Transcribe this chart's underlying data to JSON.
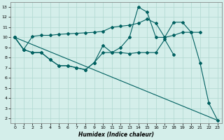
{
  "xlabel": "Humidex (Indice chaleur)",
  "bg_color": "#d4eeea",
  "grid_color": "#b0d8d0",
  "line_color": "#006060",
  "xlim": [
    -0.5,
    23.5
  ],
  "ylim": [
    1.5,
    13.5
  ],
  "xticks": [
    0,
    1,
    2,
    3,
    4,
    5,
    6,
    7,
    8,
    9,
    10,
    11,
    12,
    13,
    14,
    15,
    16,
    17,
    18,
    19,
    20,
    21,
    22,
    23
  ],
  "yticks": [
    2,
    3,
    4,
    5,
    6,
    7,
    8,
    9,
    10,
    11,
    12,
    13
  ],
  "line1_x": [
    0,
    1,
    2,
    3,
    4,
    5,
    6,
    7,
    8,
    9,
    10,
    11,
    12,
    13,
    14,
    15,
    16,
    17,
    18,
    19,
    20,
    21
  ],
  "line1_y": [
    10.0,
    8.8,
    10.1,
    10.2,
    10.2,
    10.3,
    10.35,
    10.4,
    10.45,
    10.5,
    10.6,
    11.0,
    11.1,
    11.2,
    11.4,
    11.8,
    11.4,
    10.0,
    10.2,
    10.5,
    10.5,
    10.5
  ],
  "line2_x": [
    0,
    1,
    2,
    3,
    4,
    5,
    6,
    7,
    8,
    9,
    10,
    11,
    12,
    13,
    14,
    15,
    16,
    17,
    18
  ],
  "line2_y": [
    10.0,
    8.8,
    8.5,
    8.5,
    7.8,
    7.2,
    7.2,
    7.0,
    6.8,
    7.5,
    8.5,
    8.5,
    8.5,
    8.4,
    8.5,
    8.5,
    8.5,
    9.8,
    8.3
  ],
  "line3_x": [
    0,
    1,
    2,
    3,
    4,
    5,
    6,
    7,
    8,
    9,
    10,
    11,
    12,
    13,
    14,
    15,
    16,
    17,
    18,
    19,
    20,
    21,
    22,
    23
  ],
  "line3_y": [
    10.0,
    8.8,
    8.5,
    8.5,
    7.8,
    7.2,
    7.2,
    7.0,
    6.8,
    7.5,
    9.2,
    8.5,
    9.0,
    10.0,
    13.0,
    12.5,
    10.0,
    10.0,
    11.5,
    11.5,
    10.5,
    7.5,
    3.5,
    1.8
  ],
  "line4_x": [
    0,
    23
  ],
  "line4_y": [
    10.0,
    1.8
  ]
}
